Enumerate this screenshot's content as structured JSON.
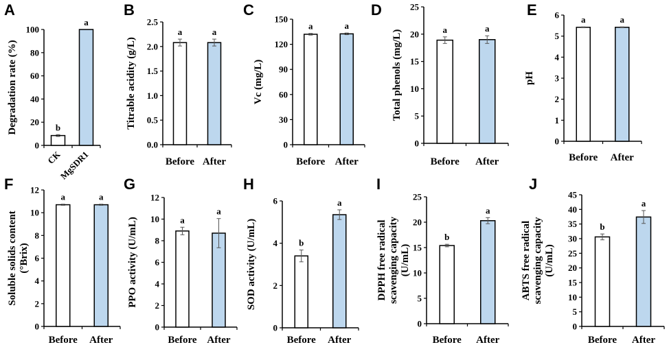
{
  "figure": {
    "bar_colors": {
      "before": "#ffffff",
      "after": "#bdd7ee",
      "outline": "#000000",
      "error": "#555555"
    }
  },
  "chart_data": [
    {
      "panel": "A",
      "type": "bar",
      "ylabel": "Degradation rate (%)",
      "categories": [
        "CK",
        "MgSDR1"
      ],
      "values": [
        8.5,
        100
      ],
      "errors": [
        0.8,
        0
      ],
      "significance": [
        "b",
        "a"
      ],
      "ylim": [
        0,
        100
      ],
      "yticks": [
        0,
        20,
        40,
        60,
        80,
        100
      ],
      "rotated_xticks": true,
      "grid": false
    },
    {
      "panel": "B",
      "type": "bar",
      "ylabel": "Titrable acidity (g/L)",
      "categories": [
        "Before",
        "After"
      ],
      "values": [
        2.08,
        2.08
      ],
      "errors": [
        0.07,
        0.07
      ],
      "significance": [
        "a",
        "a"
      ],
      "ylim": [
        0,
        2.5
      ],
      "yticks": [
        "0.0",
        "0.5",
        "1.0",
        "1.5",
        "2.0",
        "2.5"
      ],
      "grid": false
    },
    {
      "panel": "C",
      "type": "bar",
      "ylabel": "Vc (mg/L)",
      "categories": [
        "Before",
        "After"
      ],
      "values": [
        132,
        132.5
      ],
      "errors": [
        1,
        1
      ],
      "significance": [
        "a",
        "a"
      ],
      "ylim": [
        0,
        150
      ],
      "yticks": [
        0,
        30,
        60,
        90,
        120,
        150
      ],
      "grid": false
    },
    {
      "panel": "D",
      "type": "bar",
      "ylabel": "Total phenols (mg/L)",
      "categories": [
        "Before",
        "After"
      ],
      "values": [
        18.9,
        19.0
      ],
      "errors": [
        0.6,
        0.7
      ],
      "significance": [
        "a",
        "a"
      ],
      "ylim": [
        0,
        25
      ],
      "yticks": [
        0,
        5,
        10,
        15,
        20,
        25
      ],
      "grid": false
    },
    {
      "panel": "E",
      "type": "bar",
      "ylabel": "pH",
      "categories": [
        "Before",
        "After"
      ],
      "values": [
        5.42,
        5.42
      ],
      "errors": [
        0.02,
        0.02
      ],
      "significance": [
        "a",
        "a"
      ],
      "ylim": [
        0,
        6
      ],
      "yticks": [
        0,
        1,
        2,
        3,
        4,
        5,
        6
      ],
      "grid": false
    },
    {
      "panel": "F",
      "type": "bar",
      "ylabel": [
        "Soluble solids content",
        "(°Brix)"
      ],
      "categories": [
        "Before",
        "After"
      ],
      "values": [
        10.7,
        10.7
      ],
      "errors": [
        0.05,
        0.05
      ],
      "significance": [
        "a",
        "a"
      ],
      "ylim": [
        0,
        12
      ],
      "yticks": [
        0,
        2,
        4,
        6,
        8,
        10,
        12
      ],
      "grid": false
    },
    {
      "panel": "G",
      "type": "bar",
      "ylabel": "PPO activity (U/mL)",
      "categories": [
        "Before",
        "After"
      ],
      "values": [
        8.9,
        8.7
      ],
      "errors": [
        0.35,
        1.35
      ],
      "significance": [
        "a",
        "a"
      ],
      "ylim": [
        0,
        12
      ],
      "yticks": [
        0,
        2,
        4,
        6,
        8,
        10,
        12
      ],
      "grid": false
    },
    {
      "panel": "H",
      "type": "bar",
      "ylabel": "SOD activity (U/mL)",
      "categories": [
        "Before",
        "After"
      ],
      "values": [
        3.4,
        5.35
      ],
      "errors": [
        0.28,
        0.23
      ],
      "significance": [
        "b",
        "a"
      ],
      "ylim": [
        0,
        6
      ],
      "yticks": [
        0,
        2,
        4,
        6
      ],
      "grid": false
    },
    {
      "panel": "I",
      "type": "bar",
      "ylabel": [
        "DPPH free radical",
        "scavenging capacity",
        "(U/mL)"
      ],
      "categories": [
        "Before",
        "After"
      ],
      "values": [
        15.4,
        20.3
      ],
      "errors": [
        0.25,
        0.6
      ],
      "significance": [
        "b",
        "a"
      ],
      "ylim": [
        0,
        25
      ],
      "yticks": [
        0,
        5,
        10,
        15,
        20,
        25
      ],
      "grid": false
    },
    {
      "panel": "J",
      "type": "bar",
      "ylabel": [
        "ABTS free radical",
        "scavenging capacity",
        "(U/mL)"
      ],
      "categories": [
        "Before",
        "After"
      ],
      "values": [
        30.6,
        37.4
      ],
      "errors": [
        1.0,
        2.2
      ],
      "significance": [
        "b",
        "a"
      ],
      "ylim": [
        0,
        45
      ],
      "yticks": [
        0,
        5,
        10,
        15,
        20,
        25,
        30,
        35,
        40,
        45
      ],
      "grid": false
    }
  ]
}
